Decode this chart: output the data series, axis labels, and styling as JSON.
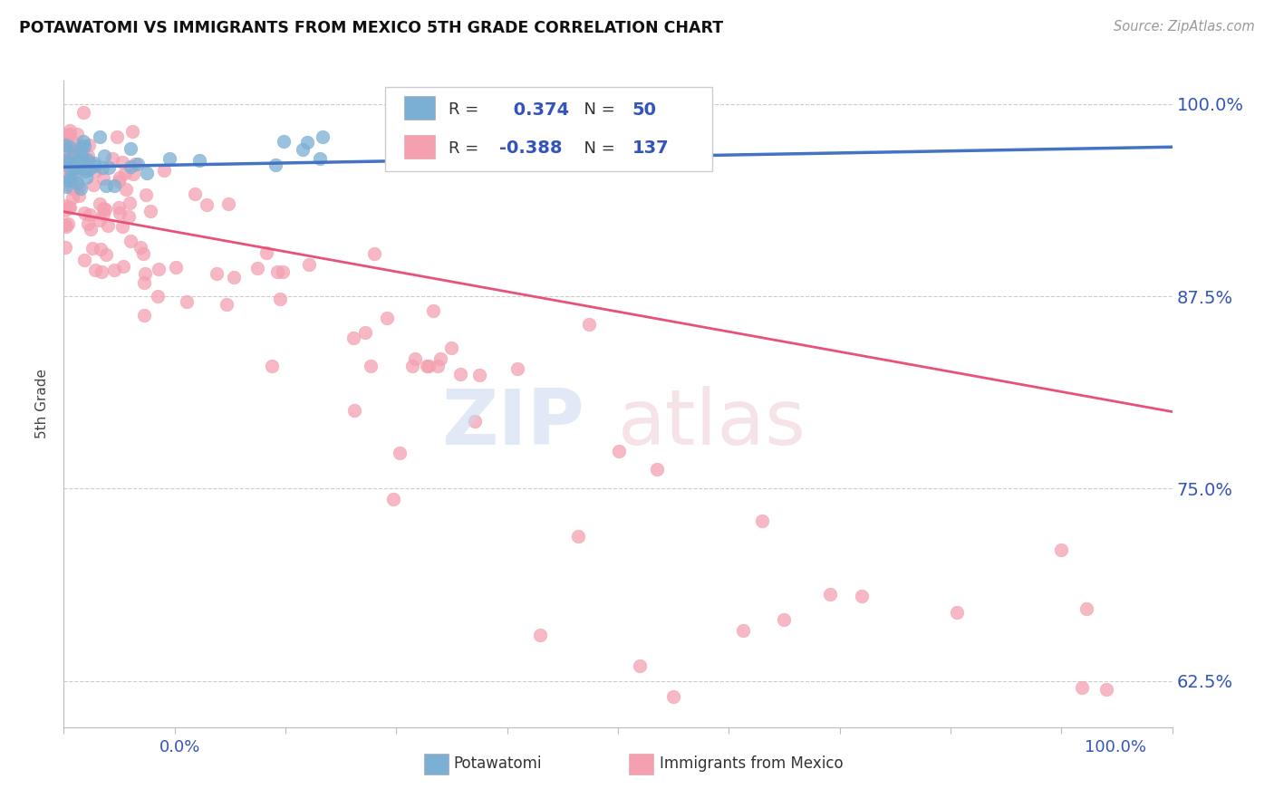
{
  "title": "POTAWATOMI VS IMMIGRANTS FROM MEXICO 5TH GRADE CORRELATION CHART",
  "source": "Source: ZipAtlas.com",
  "ylabel": "5th Grade",
  "blue_R": 0.374,
  "blue_N": 50,
  "pink_R": -0.388,
  "pink_N": 137,
  "blue_color": "#7BAFD4",
  "pink_color": "#F4A0B0",
  "blue_line_color": "#4472C4",
  "pink_line_color": "#E8527A",
  "legend_label_blue": "Potawatomi",
  "legend_label_pink": "Immigrants from Mexico",
  "ytick_vals": [
    0.625,
    0.75,
    0.875,
    1.0
  ],
  "ytick_labels": [
    "62.5%",
    "75.0%",
    "87.5%",
    "100.0%"
  ],
  "ymin": 0.595,
  "ymax": 1.015,
  "xmin": 0.0,
  "xmax": 1.0
}
